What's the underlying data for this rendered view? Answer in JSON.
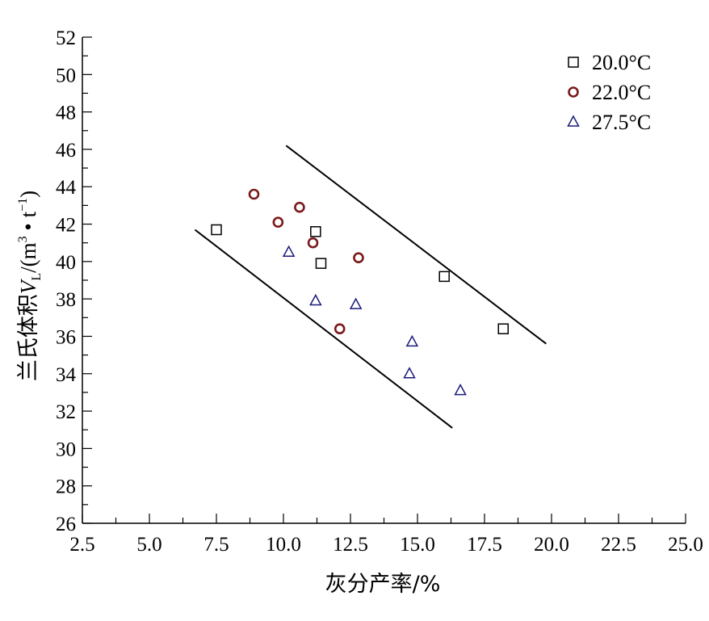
{
  "chart_data": {
    "type": "scatter",
    "xlabel": "灰分产率/%",
    "ylabel": {
      "prefix": "兰氏体积",
      "var": "V",
      "sub": "L",
      "unit_open": "/(m",
      "unit_sup1": "3",
      "unit_mid": " • t",
      "unit_sup2": "−1",
      "unit_close": ")"
    },
    "xlim": [
      2.5,
      25.0
    ],
    "ylim": [
      26,
      52
    ],
    "xticks": [
      "2.5",
      "5.0",
      "7.5",
      "10.0",
      "12.5",
      "15.0",
      "17.5",
      "20.0",
      "22.5",
      "25.0"
    ],
    "yticks": [
      "26",
      "28",
      "30",
      "32",
      "34",
      "36",
      "38",
      "40",
      "42",
      "44",
      "46",
      "48",
      "50",
      "52"
    ],
    "legend_position": "top-right",
    "series": [
      {
        "name": "20.0°C",
        "marker": "square",
        "color": "#000000",
        "points": [
          {
            "x": 7.5,
            "y": 41.7
          },
          {
            "x": 11.2,
            "y": 41.6
          },
          {
            "x": 11.4,
            "y": 39.9
          },
          {
            "x": 16.0,
            "y": 39.2
          },
          {
            "x": 18.2,
            "y": 36.4
          }
        ]
      },
      {
        "name": "22.0°C",
        "marker": "circle",
        "color": "#7a1a1a",
        "points": [
          {
            "x": 8.9,
            "y": 43.6
          },
          {
            "x": 9.8,
            "y": 42.1
          },
          {
            "x": 10.6,
            "y": 42.9
          },
          {
            "x": 11.1,
            "y": 41.0
          },
          {
            "x": 12.8,
            "y": 40.2
          },
          {
            "x": 12.1,
            "y": 36.4
          }
        ]
      },
      {
        "name": "27.5°C",
        "marker": "triangle",
        "color": "#1a1a7a",
        "points": [
          {
            "x": 10.2,
            "y": 40.5
          },
          {
            "x": 11.2,
            "y": 37.9
          },
          {
            "x": 12.7,
            "y": 37.7
          },
          {
            "x": 14.8,
            "y": 35.7
          },
          {
            "x": 14.7,
            "y": 34.0
          },
          {
            "x": 16.6,
            "y": 33.1
          }
        ]
      }
    ],
    "bounding_lines": [
      {
        "x1": 10.1,
        "y1": 46.2,
        "x2": 19.8,
        "y2": 35.6
      },
      {
        "x1": 6.7,
        "y1": 41.7,
        "x2": 16.3,
        "y2": 31.1
      }
    ]
  }
}
